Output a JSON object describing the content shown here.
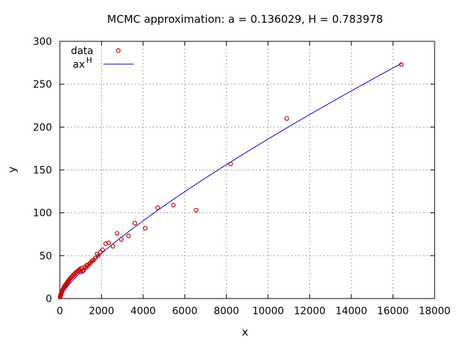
{
  "chart_data": {
    "type": "scatter",
    "title": "MCMC approximation: a = 0.136029, H = 0.783978",
    "xlabel": "x",
    "ylabel": "y",
    "xlim": [
      0,
      18000
    ],
    "ylim": [
      0,
      300
    ],
    "xticks": [
      "0",
      "2000",
      "4000",
      "6000",
      "8000",
      "10000",
      "12000",
      "14000",
      "16000",
      "18000"
    ],
    "yticks": [
      "0",
      "50",
      "100",
      "150",
      "200",
      "250",
      "300"
    ],
    "grid": true,
    "legend_position": "top-left",
    "legend": [
      {
        "label": "data",
        "marker": "circle",
        "color": "#cc0000"
      },
      {
        "label_base": "ax",
        "label_sup": "H",
        "marker": "line",
        "color": "#0000cc"
      }
    ],
    "fit": {
      "a": 0.136029,
      "H": 0.783978
    },
    "series": [
      {
        "name": "data",
        "kind": "points",
        "color": "#cc0000",
        "points": [
          [
            10,
            1.6
          ],
          [
            20,
            2.5
          ],
          [
            30,
            3.5
          ],
          [
            40,
            4.0
          ],
          [
            50,
            5.0
          ],
          [
            60,
            5.5
          ],
          [
            75,
            6.5
          ],
          [
            90,
            7.5
          ],
          [
            110,
            8.5
          ],
          [
            130,
            9.5
          ],
          [
            150,
            10.5
          ],
          [
            170,
            11.5
          ],
          [
            190,
            12.5
          ],
          [
            210,
            13.5
          ],
          [
            235,
            14.5
          ],
          [
            260,
            15.5
          ],
          [
            290,
            16.5
          ],
          [
            320,
            17.5
          ],
          [
            350,
            18.5
          ],
          [
            380,
            19.5
          ],
          [
            410,
            20.5
          ],
          [
            440,
            21.5
          ],
          [
            470,
            22.5
          ],
          [
            500,
            23.5
          ],
          [
            540,
            24.5
          ],
          [
            580,
            25.5
          ],
          [
            620,
            26.5
          ],
          [
            660,
            27.5
          ],
          [
            700,
            28.5
          ],
          [
            740,
            29.5
          ],
          [
            780,
            30.5
          ],
          [
            830,
            31.5
          ],
          [
            880,
            32.5
          ],
          [
            930,
            33.5
          ],
          [
            980,
            34.5
          ],
          [
            1000,
            31
          ],
          [
            1050,
            35.5
          ],
          [
            1100,
            32
          ],
          [
            1150,
            33
          ],
          [
            1200,
            37
          ],
          [
            1250,
            36
          ],
          [
            1300,
            39
          ],
          [
            1350,
            38
          ],
          [
            1420,
            40.5
          ],
          [
            1480,
            42
          ],
          [
            1550,
            44
          ],
          [
            1620,
            45
          ],
          [
            1700,
            47
          ],
          [
            1780,
            52
          ],
          [
            1850,
            50
          ],
          [
            1950,
            54
          ],
          [
            2050,
            57
          ],
          [
            2200,
            64
          ],
          [
            2350,
            65
          ],
          [
            2550,
            61
          ],
          [
            2750,
            76
          ],
          [
            2950,
            69
          ],
          [
            3300,
            73
          ],
          [
            3600,
            88
          ],
          [
            4100,
            82
          ],
          [
            4700,
            106
          ],
          [
            5450,
            109
          ],
          [
            6550,
            103
          ],
          [
            8200,
            157
          ],
          [
            10900,
            210
          ],
          [
            16400,
            273
          ]
        ]
      },
      {
        "name": "ax^H",
        "kind": "curve",
        "color": "#0000cc",
        "x_start": 0,
        "x_end": 16400
      }
    ]
  }
}
